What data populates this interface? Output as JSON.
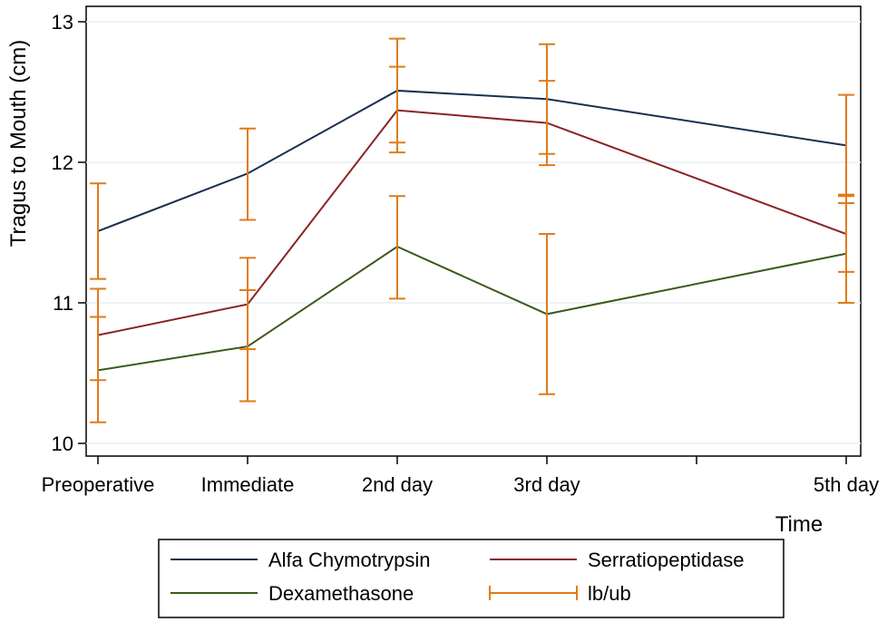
{
  "chart_data": {
    "type": "line",
    "title": "",
    "xlabel": "Time",
    "ylabel": "Tragus to Mouth (cm)",
    "ylim": [
      10,
      13
    ],
    "yticks": [
      "10",
      "11",
      "12",
      "13"
    ],
    "x_slots": 6,
    "categories": [
      {
        "label": "Preoperative",
        "slot": 0
      },
      {
        "label": "Immediate",
        "slot": 1
      },
      {
        "label": "2nd day",
        "slot": 2
      },
      {
        "label": "3rd day",
        "slot": 3
      },
      {
        "label": "5th day",
        "slot": 5
      }
    ],
    "unlabeled_tick_slots": [
      4
    ],
    "grid": true,
    "legend_position": "bottom",
    "series": [
      {
        "name": "Alfa Chymotrypsin",
        "color": "#1a2f4f",
        "values": [
          11.51,
          11.92,
          12.51,
          12.45,
          12.12
        ],
        "lb": [
          11.17,
          11.59,
          12.14,
          12.06,
          11.77
        ],
        "ub": [
          11.85,
          12.24,
          12.88,
          12.84,
          12.48
        ]
      },
      {
        "name": "Serratiopeptidase",
        "color": "#8b2323",
        "values": [
          10.77,
          10.99,
          12.37,
          12.28,
          11.49
        ],
        "lb": [
          10.45,
          10.67,
          12.07,
          11.98,
          11.22
        ],
        "ub": [
          11.1,
          11.32,
          12.68,
          12.58,
          11.76
        ]
      },
      {
        "name": "Dexamethasone",
        "color": "#3a5a1a",
        "values": [
          10.52,
          10.69,
          11.4,
          10.92,
          11.35
        ],
        "lb": [
          10.15,
          10.3,
          11.03,
          10.35,
          11.0
        ],
        "ub": [
          10.9,
          11.09,
          11.76,
          11.49,
          11.71
        ]
      }
    ],
    "errorbar_legend": {
      "name": "lb/ub",
      "color": "#e07b1a"
    }
  }
}
